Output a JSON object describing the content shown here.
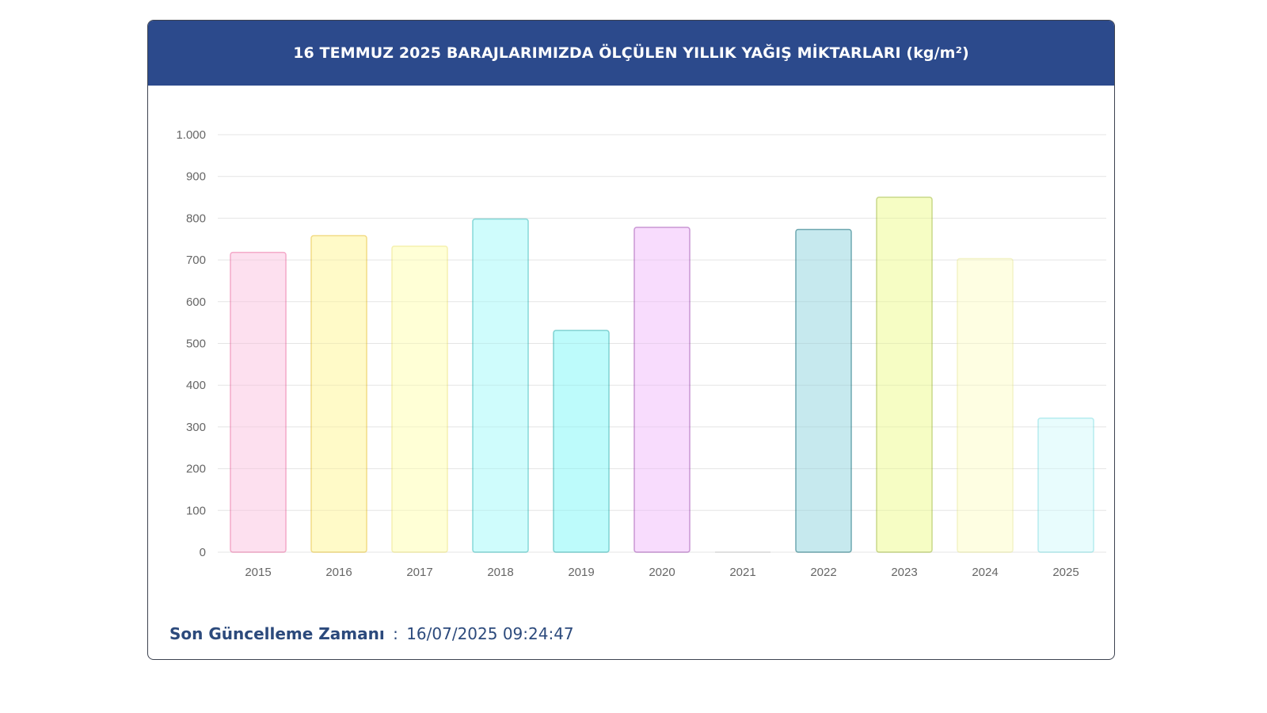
{
  "header": {
    "title": "16 TEMMUZ 2025 BARAJLARIMIZDA ÖLÇÜLEN YILLIK YAĞIŞ MİKTARLARI (kg/m²)"
  },
  "footer": {
    "label": "Son Güncelleme Zamanı",
    "separator": ":",
    "value": "16/07/2025 09:24:47"
  },
  "chart_data": {
    "type": "bar",
    "categories": [
      "2015",
      "2016",
      "2017",
      "2018",
      "2019",
      "2020",
      "2021",
      "2022",
      "2023",
      "2024",
      "2025"
    ],
    "values": [
      718,
      758,
      733,
      798,
      531,
      778,
      0,
      773,
      850,
      703,
      321
    ],
    "ylim": [
      0,
      1000
    ],
    "yticks": [
      0,
      100,
      200,
      300,
      400,
      500,
      600,
      700,
      800,
      900,
      1000
    ],
    "ytick_labels": [
      "0",
      "100",
      "200",
      "300",
      "400",
      "500",
      "600",
      "700",
      "800",
      "900",
      "1.000"
    ],
    "grid": true,
    "legend": "none",
    "bar_colors": [
      {
        "fill": "#fde0ef",
        "stroke": "#f4a9c9"
      },
      {
        "fill": "#fffac8",
        "stroke": "#f2dc86"
      },
      {
        "fill": "#ffffd6",
        "stroke": "#f5f0b0"
      },
      {
        "fill": "#cffcfc",
        "stroke": "#86d8d8"
      },
      {
        "fill": "#bdfbfb",
        "stroke": "#7ed2d2"
      },
      {
        "fill": "#f8dcfd",
        "stroke": "#c996d4"
      },
      {
        "fill": "#f2f2f2",
        "stroke": "#cfcfcf"
      },
      {
        "fill": "#c6e9ee",
        "stroke": "#6fa8b0"
      },
      {
        "fill": "#f6fdc4",
        "stroke": "#c9d88a"
      },
      {
        "fill": "#fefee2",
        "stroke": "#f3f3c6"
      },
      {
        "fill": "#e8fcfd",
        "stroke": "#b5ecef"
      }
    ]
  }
}
